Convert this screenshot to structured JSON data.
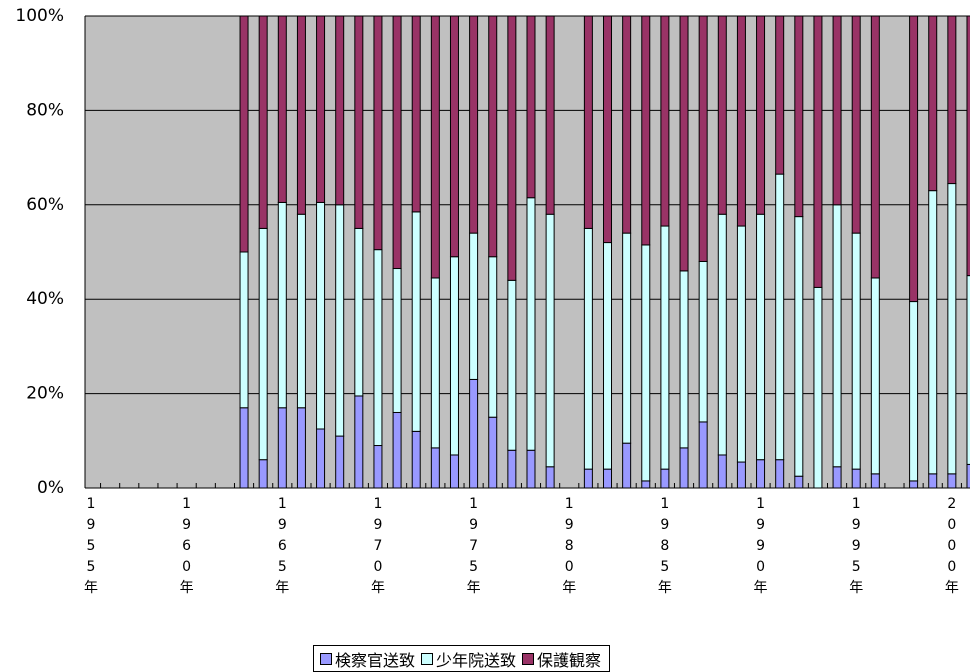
{
  "chart_data": {
    "type": "stacked_bar_100",
    "categories": [
      "1955年",
      null,
      null,
      null,
      null,
      "1960年",
      null,
      null,
      null,
      null,
      "1965年",
      null,
      null,
      null,
      null,
      "1970年",
      null,
      null,
      null,
      null,
      "1975年",
      null,
      null,
      null,
      null,
      "1980年",
      null,
      null,
      null,
      null,
      "1985年",
      null,
      null,
      null,
      null,
      "1990年",
      null,
      null,
      null,
      null,
      "1995年",
      null,
      null,
      null,
      null,
      "2000年",
      null
    ],
    "series": [
      {
        "name": "検察官送致",
        "color": "#9999ff",
        "values": [
          null,
          null,
          null,
          null,
          null,
          null,
          null,
          null,
          17,
          6,
          17,
          17,
          12.5,
          11,
          19.5,
          9,
          16,
          12,
          8.5,
          7,
          23,
          15,
          8,
          8,
          4.5,
          null,
          4,
          4,
          9.5,
          1.5,
          4,
          8.5,
          14,
          7,
          5.5,
          6,
          6,
          2.5,
          0,
          4.5,
          4,
          3,
          null,
          1.5,
          3,
          3,
          5
        ]
      },
      {
        "name": "少年院送致",
        "color": "#ccffff",
        "values": [
          null,
          null,
          null,
          null,
          null,
          null,
          null,
          null,
          33,
          49,
          43.5,
          41,
          48,
          49,
          35.5,
          41.5,
          30.5,
          46.5,
          36,
          42,
          31,
          34,
          36,
          53.5,
          53.5,
          null,
          51,
          48,
          44.5,
          50,
          51.5,
          37.5,
          34,
          51,
          50,
          52,
          60.5,
          55,
          42.5,
          55.5,
          50,
          41.5,
          null,
          38,
          60,
          61.5,
          40
        ]
      },
      {
        "name": "保護観察",
        "color": "#993366",
        "values": [
          null,
          null,
          null,
          null,
          null,
          null,
          null,
          null,
          50,
          45,
          39.5,
          42,
          39.5,
          40,
          45,
          49.5,
          53.5,
          41.5,
          55.5,
          51,
          46,
          51,
          56,
          38.5,
          42,
          null,
          45,
          48,
          46,
          48.5,
          44.5,
          54,
          52,
          42,
          44.5,
          42,
          33.5,
          42.5,
          57.5,
          40,
          46,
          55.5,
          null,
          60.5,
          37,
          35.5,
          55
        ]
      }
    ],
    "ylim": [
      0,
      100
    ],
    "yticks": [
      {
        "value": 0,
        "label": "0%"
      },
      {
        "value": 20,
        "label": "20%"
      },
      {
        "value": 40,
        "label": "40%"
      },
      {
        "value": 60,
        "label": "60%"
      },
      {
        "value": 80,
        "label": "80%"
      },
      {
        "value": 100,
        "label": "100%"
      }
    ],
    "grid": true,
    "plot_background": "#c0c0c0",
    "legend": "bottom"
  }
}
